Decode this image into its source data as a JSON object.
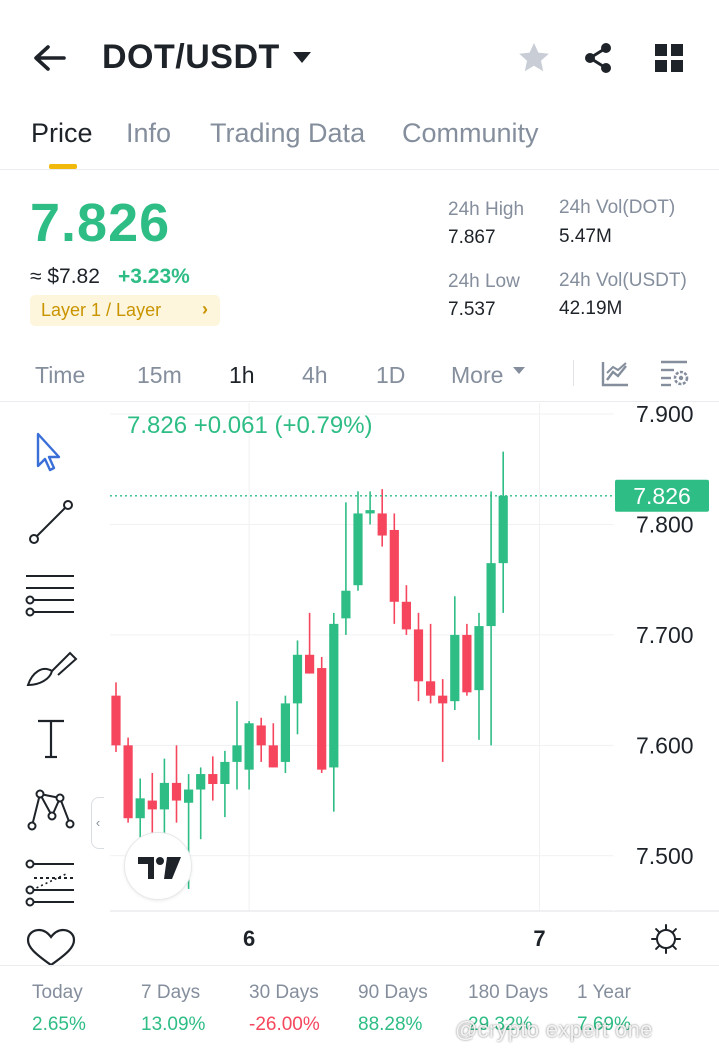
{
  "header": {
    "pair": "DOT/USDT",
    "icons": [
      "back-arrow-icon",
      "caret-down-icon",
      "star-icon",
      "share-icon",
      "grid-icon"
    ]
  },
  "tabs": [
    {
      "label": "Price",
      "active": true
    },
    {
      "label": "Info",
      "active": false
    },
    {
      "label": "Trading Data",
      "active": false
    },
    {
      "label": "Community",
      "active": false
    }
  ],
  "ticker": {
    "price": "7.826",
    "approx_usd": "≈ $7.82",
    "change_pct": "+3.23%",
    "tag": "Layer 1 / Layer",
    "tag_chevron": "›",
    "high_label": "24h High",
    "high_value": "7.867",
    "low_label": "24h Low",
    "low_value": "7.537",
    "vol_dot_label": "24h Vol(DOT)",
    "vol_dot_value": "5.47M",
    "vol_usdt_label": "24h Vol(USDT)",
    "vol_usdt_value": "42.19M",
    "up_color": "#2ebd85",
    "down_color": "#f6465d",
    "accent_color": "#f0b90b"
  },
  "timeframes": {
    "items": [
      {
        "label": "Time",
        "active": false
      },
      {
        "label": "15m",
        "active": false
      },
      {
        "label": "1h",
        "active": true
      },
      {
        "label": "4h",
        "active": false
      },
      {
        "label": "1D",
        "active": false
      },
      {
        "label": "More",
        "active": false
      }
    ],
    "icons": [
      "indicator-icon",
      "chart-settings-icon"
    ]
  },
  "drawing_tools": [
    "cursor-icon",
    "trend-line-icon",
    "horizontal-lines-icon",
    "brush-icon",
    "text-tool-icon",
    "pattern-icon",
    "fib-retracement-icon",
    "heart-icon"
  ],
  "chart_data": {
    "type": "candlestick",
    "ohlc_summary": {
      "last": "7.826",
      "change": "+0.061",
      "change_pct": "(+0.79%)"
    },
    "current_price_label": "7.826",
    "current_price": 7.826,
    "y_ticks": [
      "7.900",
      "7.800",
      "7.700",
      "7.600",
      "7.500"
    ],
    "ylim": [
      7.45,
      7.91
    ],
    "x_ticks": [
      {
        "label": "6",
        "index": 11
      },
      {
        "label": "7",
        "index": 35
      }
    ],
    "candles": [
      {
        "o": 7.645,
        "h": 7.657,
        "l": 7.594,
        "c": 7.6
      },
      {
        "o": 7.6,
        "h": 7.607,
        "l": 7.53,
        "c": 7.534
      },
      {
        "o": 7.534,
        "h": 7.57,
        "l": 7.502,
        "c": 7.552
      },
      {
        "o": 7.55,
        "h": 7.575,
        "l": 7.52,
        "c": 7.542
      },
      {
        "o": 7.542,
        "h": 7.588,
        "l": 7.515,
        "c": 7.566
      },
      {
        "o": 7.566,
        "h": 7.6,
        "l": 7.53,
        "c": 7.55
      },
      {
        "o": 7.548,
        "h": 7.574,
        "l": 7.47,
        "c": 7.56
      },
      {
        "o": 7.56,
        "h": 7.58,
        "l": 7.515,
        "c": 7.574
      },
      {
        "o": 7.574,
        "h": 7.59,
        "l": 7.55,
        "c": 7.565
      },
      {
        "o": 7.565,
        "h": 7.595,
        "l": 7.535,
        "c": 7.585
      },
      {
        "o": 7.585,
        "h": 7.64,
        "l": 7.56,
        "c": 7.6
      },
      {
        "o": 7.578,
        "h": 7.622,
        "l": 7.56,
        "c": 7.62
      },
      {
        "o": 7.618,
        "h": 7.625,
        "l": 7.585,
        "c": 7.6
      },
      {
        "o": 7.6,
        "h": 7.62,
        "l": 7.58,
        "c": 7.58
      },
      {
        "o": 7.585,
        "h": 7.645,
        "l": 7.575,
        "c": 7.638
      },
      {
        "o": 7.638,
        "h": 7.695,
        "l": 7.61,
        "c": 7.682
      },
      {
        "o": 7.682,
        "h": 7.72,
        "l": 7.665,
        "c": 7.665
      },
      {
        "o": 7.67,
        "h": 7.68,
        "l": 7.575,
        "c": 7.578
      },
      {
        "o": 7.58,
        "h": 7.72,
        "l": 7.54,
        "c": 7.71
      },
      {
        "o": 7.715,
        "h": 7.82,
        "l": 7.7,
        "c": 7.74
      },
      {
        "o": 7.745,
        "h": 7.83,
        "l": 7.74,
        "c": 7.81
      },
      {
        "o": 7.81,
        "h": 7.83,
        "l": 7.8,
        "c": 7.813
      },
      {
        "o": 7.81,
        "h": 7.832,
        "l": 7.78,
        "c": 7.79
      },
      {
        "o": 7.795,
        "h": 7.81,
        "l": 7.71,
        "c": 7.73
      },
      {
        "o": 7.73,
        "h": 7.745,
        "l": 7.7,
        "c": 7.705
      },
      {
        "o": 7.705,
        "h": 7.72,
        "l": 7.64,
        "c": 7.658
      },
      {
        "o": 7.658,
        "h": 7.71,
        "l": 7.638,
        "c": 7.645
      },
      {
        "o": 7.645,
        "h": 7.66,
        "l": 7.585,
        "c": 7.638
      },
      {
        "o": 7.64,
        "h": 7.735,
        "l": 7.632,
        "c": 7.7
      },
      {
        "o": 7.7,
        "h": 7.71,
        "l": 7.645,
        "c": 7.648
      },
      {
        "o": 7.65,
        "h": 7.72,
        "l": 7.605,
        "c": 7.708
      },
      {
        "o": 7.708,
        "h": 7.83,
        "l": 7.6,
        "c": 7.765
      },
      {
        "o": 7.765,
        "h": 7.866,
        "l": 7.72,
        "c": 7.826
      }
    ]
  },
  "performance": [
    {
      "label": "Today",
      "value": "2.65%",
      "dir": "pos"
    },
    {
      "label": "7 Days",
      "value": "13.09%",
      "dir": "pos"
    },
    {
      "label": "30 Days",
      "value": "-26.00%",
      "dir": "neg"
    },
    {
      "label": "90 Days",
      "value": "88.28%",
      "dir": "pos"
    },
    {
      "label": "180 Days",
      "value": "29.32%",
      "dir": "pos"
    },
    {
      "label": "1 Year",
      "value": "7.69%",
      "dir": "pos"
    }
  ],
  "watermark": "@crypto expert one"
}
